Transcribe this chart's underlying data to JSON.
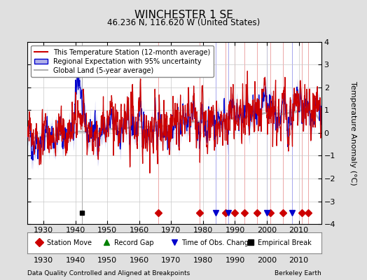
{
  "title": "WINCHESTER 1 SE",
  "subtitle": "46.236 N, 116.620 W (United States)",
  "legend_labels": [
    "This Temperature Station (12-month average)",
    "Regional Expectation with 95% uncertainty",
    "Global Land (5-year average)"
  ],
  "xlabel_bottom": "Data Quality Controlled and Aligned at Breakpoints",
  "xlabel_right": "Berkeley Earth",
  "ylabel": "Temperature Anomaly (°C)",
  "xlim": [
    1925,
    2017
  ],
  "ylim": [
    -4,
    4
  ],
  "yticks": [
    -4,
    -3,
    -2,
    -1,
    0,
    1,
    2,
    3,
    4
  ],
  "xticks": [
    1930,
    1940,
    1950,
    1960,
    1970,
    1980,
    1990,
    2000,
    2010
  ],
  "bg_color": "#e0e0e0",
  "plot_bg_color": "#ffffff",
  "grid_color": "#c8c8c8",
  "red_color": "#cc0000",
  "blue_color": "#0000cc",
  "blue_fill_color": "#b0b0e8",
  "gray_color": "#b0b0b0",
  "station_move_times": [
    1966,
    1979,
    1987,
    1990,
    1993,
    1997,
    2001,
    2005,
    2011,
    2013
  ],
  "record_gap_times": [],
  "obs_change_times": [
    1984,
    1988,
    2000,
    2008
  ],
  "empirical_break_times": [
    1942
  ],
  "seed": 42
}
